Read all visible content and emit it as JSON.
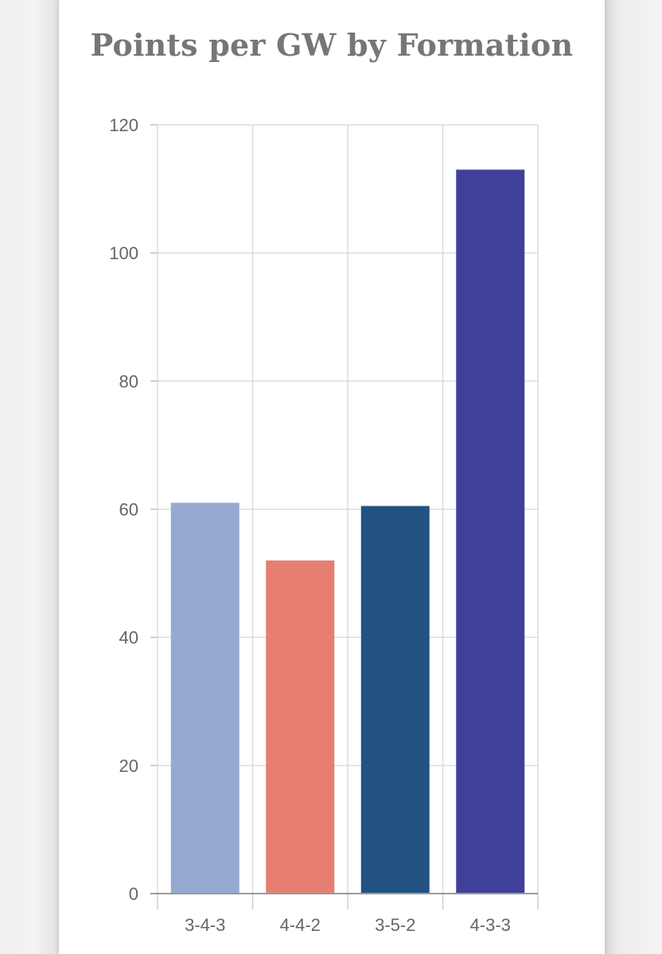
{
  "chart_data": {
    "type": "bar",
    "title": "Points per GW by Formation",
    "xlabel": "",
    "ylabel": "",
    "categories": [
      "3-4-3",
      "4-4-2",
      "3-5-2",
      "4-3-3"
    ],
    "values": [
      61,
      52,
      60.5,
      113
    ],
    "colors": [
      "#96a9d0",
      "#e67f71",
      "#225281",
      "#40409b"
    ],
    "ylim": [
      0,
      120
    ],
    "yticks": [
      0,
      20,
      40,
      60,
      80,
      100,
      120
    ],
    "grid": true,
    "legend": "none"
  }
}
